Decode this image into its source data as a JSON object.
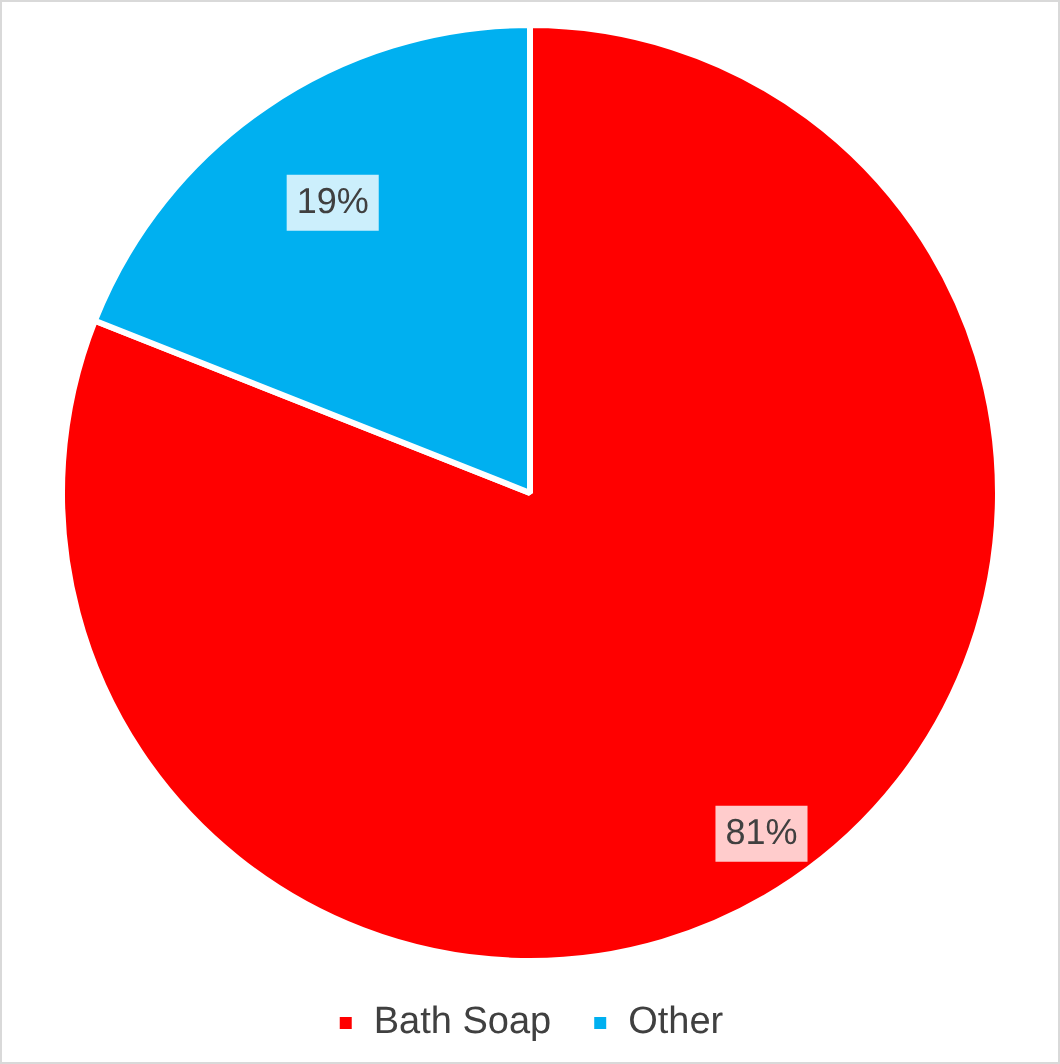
{
  "chart_data": {
    "type": "pie",
    "categories": [
      "Bath Soap",
      "Other"
    ],
    "values": [
      81,
      19
    ],
    "colors": [
      "#ff0000",
      "#00b0f0"
    ],
    "value_labels": [
      "81%",
      "19%"
    ],
    "legend": "bottom"
  }
}
